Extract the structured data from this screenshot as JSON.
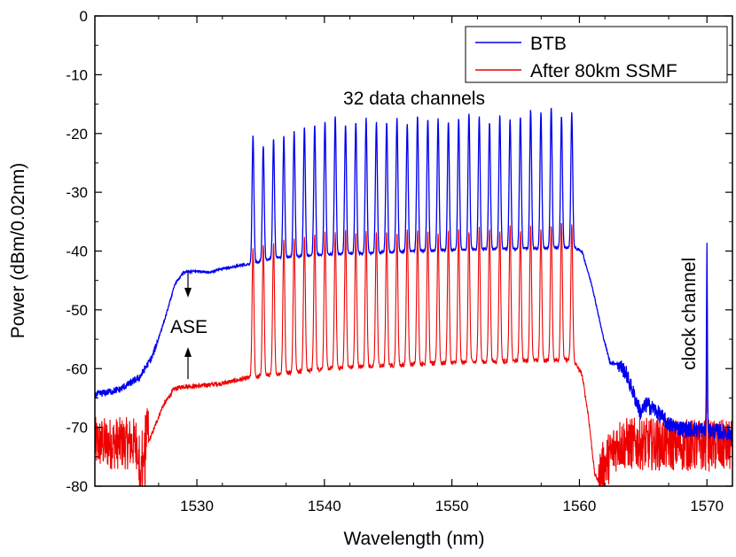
{
  "chart_data": {
    "type": "line",
    "title": "",
    "xlabel": "Wavelength (nm)",
    "ylabel": "Power (dBm/0.02nm)",
    "xlim": [
      1522,
      1572
    ],
    "ylim": [
      -80,
      0
    ],
    "xticks": [
      1530,
      1540,
      1550,
      1560,
      1570
    ],
    "yticks": [
      0,
      -10,
      -20,
      -30,
      -40,
      -50,
      -60,
      -70,
      -80
    ],
    "grid": false,
    "legend_position": "top-right",
    "channels": {
      "count": 32,
      "first_nm": 1534.4,
      "last_nm": 1559.4,
      "clock_nm": 1570.0
    },
    "series": [
      {
        "name": "BTB",
        "color": "#0000ee",
        "channel_peaks_dbm": [
          -20.5,
          -22.0,
          -21.0,
          -20.5,
          -19.5,
          -19.0,
          -18.5,
          -18.0,
          -17.0,
          -18.5,
          -18.0,
          -17.5,
          -18.0,
          -18.0,
          -17.5,
          -18.5,
          -17.0,
          -17.5,
          -17.5,
          -18.0,
          -17.5,
          -16.5,
          -17.0,
          -18.0,
          -17.0,
          -17.5,
          -17.0,
          -16.0,
          -16.5,
          -15.5,
          -17.0,
          -16.5
        ],
        "floor_points": [
          [
            1522,
            -64.5
          ],
          [
            1524,
            -63.5
          ],
          [
            1525.5,
            -61.5
          ],
          [
            1526.5,
            -58
          ],
          [
            1527.5,
            -51.5
          ],
          [
            1528.3,
            -45.5
          ],
          [
            1529,
            -43.6
          ],
          [
            1530,
            -43.4
          ],
          [
            1531,
            -43.6
          ],
          [
            1532,
            -43
          ],
          [
            1534.2,
            -42.2
          ],
          [
            1536,
            -41.2
          ],
          [
            1540,
            -40.6
          ],
          [
            1545,
            -40.2
          ],
          [
            1550,
            -39.8
          ],
          [
            1555,
            -39.6
          ],
          [
            1559.5,
            -39.4
          ],
          [
            1560.2,
            -40
          ],
          [
            1561,
            -46
          ],
          [
            1561.8,
            -54
          ],
          [
            1562.4,
            -59
          ],
          [
            1563,
            -59.2
          ],
          [
            1563.6,
            -60.5
          ],
          [
            1564.2,
            -64
          ],
          [
            1564.8,
            -67.5
          ],
          [
            1565.3,
            -66
          ],
          [
            1566,
            -67.2
          ],
          [
            1567,
            -69.5
          ],
          [
            1568,
            -70.2
          ],
          [
            1570,
            -70.5
          ],
          [
            1572,
            -71
          ]
        ],
        "clock_peak_dbm": -40
      },
      {
        "name": "After 80km SSMF",
        "color": "#ee0000",
        "channel_peaks_dbm": [
          -39.5,
          -39.0,
          -38.5,
          -38.0,
          -37.5,
          -37.5,
          -37.0,
          -37.0,
          -37.0,
          -36.5,
          -37.0,
          -36.5,
          -36.5,
          -37.0,
          -37.0,
          -36.5,
          -36.5,
          -36.5,
          -37.0,
          -36.5,
          -36.5,
          -36.5,
          -36.0,
          -36.0,
          -36.5,
          -36.0,
          -36.5,
          -35.5,
          -36.5,
          -35.5,
          -35.0,
          -35.5
        ],
        "floor_points": [
          [
            1522,
            -74.5
          ],
          [
            1525.8,
            -74.5
          ],
          [
            1526.5,
            -71
          ],
          [
            1527.3,
            -66.5
          ],
          [
            1528.2,
            -63.5
          ],
          [
            1529,
            -63
          ],
          [
            1530,
            -63
          ],
          [
            1532,
            -62.5
          ],
          [
            1534.2,
            -61.5
          ],
          [
            1536,
            -61
          ],
          [
            1540,
            -60
          ],
          [
            1545,
            -59.5
          ],
          [
            1550,
            -59
          ],
          [
            1555,
            -58.7
          ],
          [
            1559.5,
            -58.5
          ],
          [
            1560.2,
            -61
          ],
          [
            1560.7,
            -68
          ],
          [
            1561.2,
            -78
          ],
          [
            1561.6,
            -79.5
          ],
          [
            1563,
            -74.5
          ],
          [
            1572,
            -75
          ]
        ],
        "clock_peak_dbm": -57
      }
    ],
    "annotations": [
      "32 data channels",
      "ASE",
      "clock channel"
    ]
  }
}
